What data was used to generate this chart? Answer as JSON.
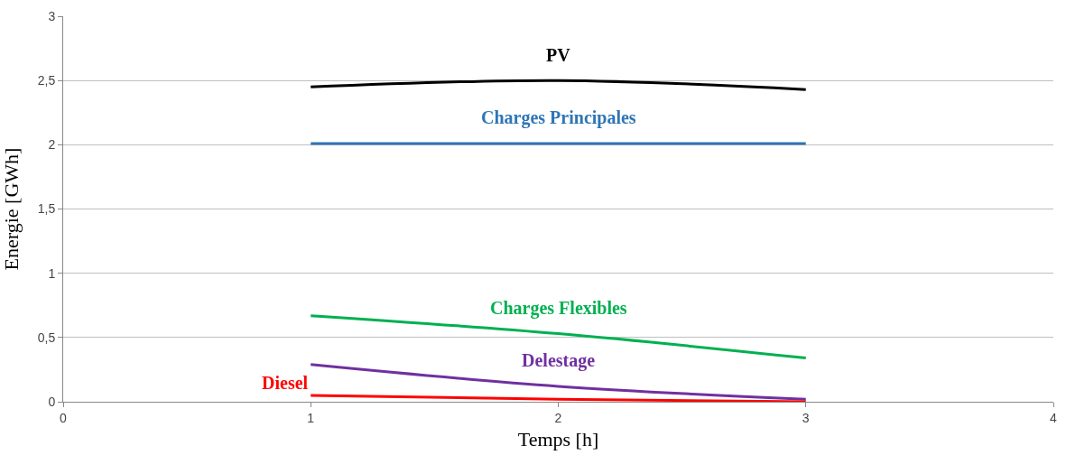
{
  "chart_data": {
    "type": "line",
    "xlabel": "Temps [h]",
    "ylabel": "Energie [GWh]",
    "x": [
      1,
      2,
      3
    ],
    "series": [
      {
        "name": "PV",
        "color": "#000000",
        "values": [
          2.45,
          2.5,
          2.43
        ]
      },
      {
        "name": "Charges Principales",
        "color": "#2e75b6",
        "values": [
          2.01,
          2.01,
          2.01
        ]
      },
      {
        "name": "Charges Flexibles",
        "color": "#00b050",
        "values": [
          0.67,
          0.53,
          0.34
        ]
      },
      {
        "name": "Delestage",
        "color": "#7030a0",
        "values": [
          0.29,
          0.12,
          0.02
        ]
      },
      {
        "name": "Diesel",
        "color": "#ff0000",
        "values": [
          0.05,
          0.02,
          0.0
        ]
      }
    ],
    "xlim": [
      0,
      4
    ],
    "xticks": [
      0,
      1,
      2,
      3,
      4
    ],
    "ylim": [
      0,
      3
    ],
    "yticks": [
      0,
      {
        "value": 0.5,
        "label": "0,5"
      },
      1,
      {
        "value": 1.5,
        "label": "1,5"
      },
      2,
      {
        "value": 2.5,
        "label": "2,5"
      },
      3
    ],
    "grid": "y",
    "legend": false,
    "marker": "none",
    "line_style": "solid"
  }
}
